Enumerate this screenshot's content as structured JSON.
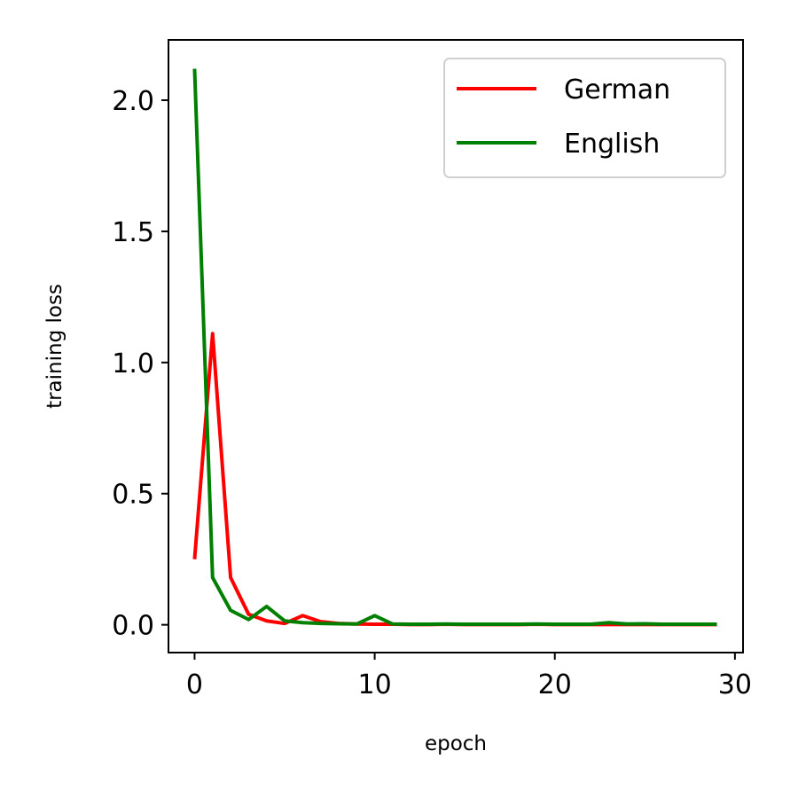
{
  "chart_data": {
    "type": "line",
    "title": "",
    "xlabel": "epoch",
    "ylabel": "training loss",
    "xlim": [
      -1.45,
      30.45
    ],
    "ylim": [
      -0.106,
      2.23
    ],
    "xticks": [
      0,
      10,
      20,
      30
    ],
    "xtick_labels": [
      "0",
      "10",
      "20",
      "30"
    ],
    "yticks": [
      0.0,
      0.5,
      1.0,
      1.5,
      2.0
    ],
    "ytick_labels": [
      "0.0",
      "0.5",
      "1.0",
      "1.5",
      "2.0"
    ],
    "grid": false,
    "legend_position": "top-right",
    "x": [
      0,
      1,
      2,
      3,
      4,
      5,
      6,
      7,
      8,
      9,
      10,
      11,
      12,
      13,
      14,
      15,
      16,
      17,
      18,
      19,
      20,
      21,
      22,
      23,
      24,
      25,
      26,
      27,
      28,
      29
    ],
    "series": [
      {
        "name": "German",
        "color": "#ff0000",
        "values": [
          0.25,
          1.11,
          0.18,
          0.04,
          0.015,
          0.005,
          0.035,
          0.012,
          0.005,
          0.003,
          0.002,
          0.002,
          0.001,
          0.001,
          0.002,
          0.001,
          0.001,
          0.001,
          0.001,
          0.002,
          0.001,
          0.001,
          0.001,
          0.001,
          0.001,
          0.001,
          0.001,
          0.001,
          0.001,
          0.001
        ]
      },
      {
        "name": "English",
        "color": "#008000",
        "values": [
          2.12,
          0.18,
          0.055,
          0.02,
          0.07,
          0.015,
          0.008,
          0.005,
          0.004,
          0.003,
          0.035,
          0.003,
          0.002,
          0.002,
          0.003,
          0.002,
          0.002,
          0.002,
          0.002,
          0.003,
          0.002,
          0.002,
          0.002,
          0.008,
          0.003,
          0.004,
          0.002,
          0.002,
          0.002,
          0.002
        ]
      }
    ]
  }
}
